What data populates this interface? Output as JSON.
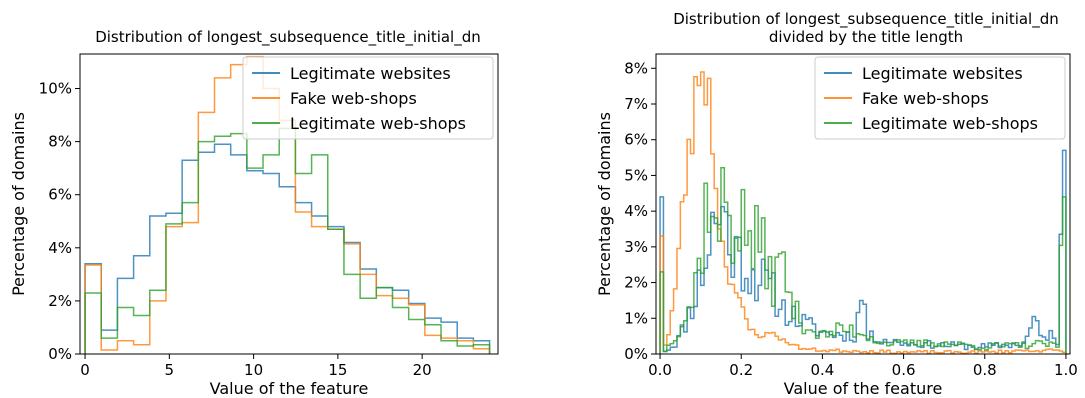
{
  "chart_data": [
    {
      "type": "line",
      "title": "Distribution of longest_subsequence_title_initial_dn",
      "subtitle": "",
      "xlabel": "Value of the feature",
      "ylabel": "Percentage of domains",
      "xlim": [
        -0.3,
        24.5
      ],
      "ylim": [
        0,
        11.3
      ],
      "xticks": [
        0,
        5,
        10,
        15,
        20
      ],
      "xtick_labels": [
        "0",
        "5",
        "10",
        "15",
        "20"
      ],
      "yticks": [
        0,
        2,
        4,
        6,
        8,
        10
      ],
      "ytick_labels": [
        "0%",
        "2%",
        "4%",
        "6%",
        "8%",
        "10%"
      ],
      "grid": false,
      "legend_position": "top-right",
      "series": [
        {
          "name": "Legitimate websites",
          "color": "#1f77b4",
          "edges": [
            0,
            0.96,
            1.92,
            2.88,
            3.84,
            4.8,
            5.76,
            6.72,
            7.68,
            8.64,
            9.6,
            10.56,
            11.52,
            12.48,
            13.44,
            14.4,
            15.36,
            16.32,
            17.28,
            18.24,
            19.2,
            20.16,
            21.12,
            22.08,
            23.04,
            24.0
          ],
          "values": [
            3.4,
            0.9,
            2.85,
            3.7,
            5.2,
            5.3,
            7.3,
            7.6,
            7.9,
            7.5,
            6.9,
            6.8,
            6.3,
            5.7,
            5.2,
            4.8,
            4.2,
            3.2,
            2.5,
            2.4,
            1.9,
            1.35,
            1.2,
            0.6,
            0.5
          ]
        },
        {
          "name": "Fake web-shops",
          "color": "#ff7f0e",
          "edges": [
            0,
            0.96,
            1.92,
            2.88,
            3.84,
            4.8,
            5.76,
            6.72,
            7.68,
            8.64,
            9.6,
            10.56,
            11.52,
            12.48,
            13.44,
            14.4,
            15.36,
            16.32,
            17.28,
            18.24,
            19.2,
            20.16,
            21.12,
            22.08,
            23.04,
            24.0
          ],
          "values": [
            3.35,
            0.15,
            0.5,
            0.35,
            2.0,
            4.8,
            4.95,
            9.1,
            10.4,
            10.9,
            11.2,
            10.0,
            8.8,
            5.35,
            4.8,
            4.7,
            4.15,
            3.0,
            2.2,
            2.1,
            1.85,
            0.7,
            0.6,
            0.5,
            0.2
          ]
        },
        {
          "name": "Legitimate web-shops",
          "color": "#2ca02c",
          "edges": [
            0,
            0.96,
            1.92,
            2.88,
            3.84,
            4.8,
            5.76,
            6.72,
            7.68,
            8.64,
            9.6,
            10.56,
            11.52,
            12.48,
            13.44,
            14.4,
            15.36,
            16.32,
            17.28,
            18.24,
            19.2,
            20.16,
            21.12,
            22.08,
            23.04,
            24.0
          ],
          "values": [
            2.3,
            0.6,
            1.75,
            1.45,
            2.4,
            4.9,
            5.7,
            8.0,
            8.2,
            8.3,
            7.0,
            7.5,
            8.5,
            6.8,
            7.5,
            4.7,
            3.0,
            2.1,
            2.5,
            1.75,
            1.3,
            1.1,
            0.5,
            0.3,
            0.35
          ]
        }
      ]
    },
    {
      "type": "line",
      "title": "Distribution of longest_subsequence_title_initial_dn",
      "subtitle": "divided by the title length",
      "xlabel": "Value of the feature",
      "ylabel": "Percentage of domains",
      "xlim": [
        -0.01,
        1.01
      ],
      "ylim": [
        0,
        8.4
      ],
      "xticks": [
        0.0,
        0.2,
        0.4,
        0.6,
        0.8,
        1.0
      ],
      "xtick_labels": [
        "0.0",
        "0.2",
        "0.4",
        "0.6",
        "0.8",
        "1.0"
      ],
      "yticks": [
        0,
        1,
        2,
        3,
        4,
        5,
        6,
        7,
        8
      ],
      "ytick_labels": [
        "0%",
        "1%",
        "2%",
        "3%",
        "4%",
        "5%",
        "6%",
        "7%",
        "8%"
      ],
      "grid": false,
      "legend_position": "top-right",
      "series": [
        {
          "name": "Legitimate websites",
          "color": "#1f77b4",
          "anchors": [
            [
              0,
              4.4
            ],
            [
              0.005,
              0.1
            ],
            [
              0.02,
              0.15
            ],
            [
              0.04,
              0.3
            ],
            [
              0.06,
              0.8
            ],
            [
              0.08,
              1.4
            ],
            [
              0.1,
              2.1
            ],
            [
              0.12,
              3.0
            ],
            [
              0.13,
              4.0
            ],
            [
              0.14,
              3.1
            ],
            [
              0.15,
              4.5
            ],
            [
              0.17,
              3.0
            ],
            [
              0.2,
              2.7
            ],
            [
              0.22,
              2.3
            ],
            [
              0.25,
              2.1
            ],
            [
              0.28,
              1.7
            ],
            [
              0.3,
              1.3
            ],
            [
              0.35,
              0.9
            ],
            [
              0.4,
              0.6
            ],
            [
              0.48,
              0.5
            ],
            [
              0.5,
              1.9
            ],
            [
              0.51,
              0.5
            ],
            [
              0.6,
              0.3
            ],
            [
              0.7,
              0.25
            ],
            [
              0.8,
              0.2
            ],
            [
              0.9,
              0.3
            ],
            [
              0.92,
              1.0
            ],
            [
              0.94,
              0.4
            ],
            [
              0.96,
              0.6
            ],
            [
              0.98,
              0.2
            ],
            [
              0.99,
              5.7
            ],
            [
              1.0,
              5.7
            ]
          ],
          "jitter": 0.35,
          "seed": 11
        },
        {
          "name": "Fake web-shops",
          "color": "#ff7f0e",
          "anchors": [
            [
              0,
              3.3
            ],
            [
              0.005,
              0.05
            ],
            [
              0.02,
              0.5
            ],
            [
              0.04,
              2.0
            ],
            [
              0.055,
              4.0
            ],
            [
              0.07,
              5.6
            ],
            [
              0.085,
              6.5
            ],
            [
              0.095,
              8.2
            ],
            [
              0.105,
              7.9
            ],
            [
              0.115,
              8.0
            ],
            [
              0.125,
              6.5
            ],
            [
              0.135,
              5.4
            ],
            [
              0.15,
              3.2
            ],
            [
              0.17,
              2.3
            ],
            [
              0.2,
              1.3
            ],
            [
              0.22,
              0.7
            ],
            [
              0.25,
              0.5
            ],
            [
              0.28,
              0.6
            ],
            [
              0.3,
              0.4
            ],
            [
              0.35,
              0.15
            ],
            [
              0.4,
              0.1
            ],
            [
              0.5,
              0.08
            ],
            [
              0.6,
              0.05
            ],
            [
              0.7,
              0.05
            ],
            [
              0.8,
              0.05
            ],
            [
              0.9,
              0.1
            ],
            [
              0.98,
              0.1
            ],
            [
              0.99,
              0.05
            ],
            [
              1.0,
              0.05
            ]
          ],
          "jitter": 0.15,
          "seed": 23
        },
        {
          "name": "Legitimate web-shops",
          "color": "#2ca02c",
          "anchors": [
            [
              0,
              2.3
            ],
            [
              0.005,
              0.05
            ],
            [
              0.02,
              0.2
            ],
            [
              0.05,
              0.8
            ],
            [
              0.08,
              1.5
            ],
            [
              0.1,
              2.8
            ],
            [
              0.12,
              4.8
            ],
            [
              0.14,
              3.0
            ],
            [
              0.16,
              4.6
            ],
            [
              0.18,
              3.5
            ],
            [
              0.2,
              3.7
            ],
            [
              0.22,
              3.2
            ],
            [
              0.25,
              3.0
            ],
            [
              0.28,
              2.0
            ],
            [
              0.3,
              2.6
            ],
            [
              0.33,
              1.2
            ],
            [
              0.36,
              0.8
            ],
            [
              0.4,
              0.5
            ],
            [
              0.45,
              0.7
            ],
            [
              0.5,
              0.6
            ],
            [
              0.55,
              0.3
            ],
            [
              0.6,
              0.3
            ],
            [
              0.7,
              0.3
            ],
            [
              0.8,
              0.2
            ],
            [
              0.9,
              0.25
            ],
            [
              0.95,
              0.3
            ],
            [
              0.98,
              0.15
            ],
            [
              0.99,
              4.4
            ],
            [
              1.0,
              4.4
            ]
          ],
          "jitter": 0.35,
          "seed": 37
        }
      ]
    }
  ]
}
